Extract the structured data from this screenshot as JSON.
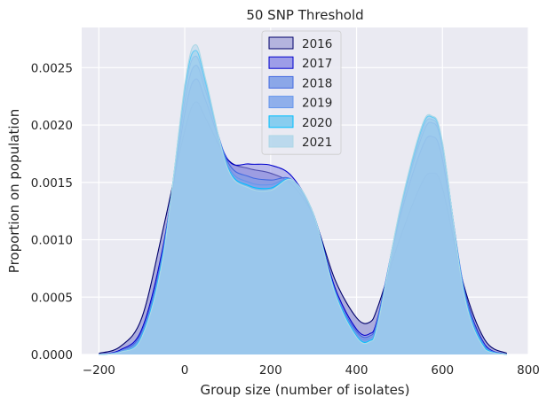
{
  "chart_data": {
    "type": "area",
    "title": "50 SNP Threshold",
    "xlabel": "Group size (number of isolates)",
    "ylabel": "Proportion on population",
    "xlim": [
      -240,
      800
    ],
    "ylim": [
      0,
      0.00285
    ],
    "xticks": [
      -200,
      0,
      200,
      400,
      600,
      800
    ],
    "xtick_labels": [
      "−200",
      "0",
      "200",
      "400",
      "600",
      "800"
    ],
    "yticks": [
      0,
      0.0005,
      0.001,
      0.0015,
      0.002,
      0.0025
    ],
    "ytick_labels": [
      "0.0000",
      "0.0005",
      "0.0010",
      "0.0015",
      "0.0020",
      "0.0025"
    ],
    "grid": true,
    "legend_position": "top-center",
    "x": [
      -200,
      -150,
      -100,
      -50,
      0,
      25,
      50,
      100,
      150,
      200,
      250,
      300,
      350,
      400,
      430,
      450,
      500,
      550,
      575,
      600,
      650,
      700,
      750
    ],
    "series": [
      {
        "name": "2016",
        "fill": "#aaaadb",
        "stroke": "#00006b",
        "values": [
          1e-05,
          7e-05,
          0.00032,
          0.0011,
          0.00195,
          0.0022,
          0.00205,
          0.0017,
          0.00162,
          0.00158,
          0.00148,
          0.0012,
          0.00065,
          0.00032,
          0.00028,
          0.00042,
          0.001,
          0.00148,
          0.00158,
          0.00145,
          0.0006,
          0.00012,
          1e-05
        ]
      },
      {
        "name": "2017",
        "fill": "#8f8fe6",
        "stroke": "#0000cd",
        "values": [
          0.0,
          4e-05,
          0.00022,
          0.00095,
          0.0021,
          0.0024,
          0.0022,
          0.0017,
          0.00166,
          0.00165,
          0.00155,
          0.00122,
          0.00058,
          0.00022,
          0.00018,
          0.00033,
          0.00118,
          0.00178,
          0.0019,
          0.0017,
          0.00058,
          8e-05,
          0.0
        ]
      },
      {
        "name": "2018",
        "fill": "#7a9be6",
        "stroke": "#4169e1",
        "values": [
          0.0,
          3e-05,
          0.0002,
          0.00092,
          0.0022,
          0.00252,
          0.00228,
          0.00168,
          0.00155,
          0.00152,
          0.00152,
          0.0012,
          0.00055,
          0.0002,
          0.00016,
          0.00032,
          0.00122,
          0.00188,
          0.00202,
          0.0018,
          0.00058,
          7e-05,
          0.0
        ]
      },
      {
        "name": "2019",
        "fill": "#7fa5ea",
        "stroke": "#6495ed",
        "values": [
          0.0,
          3e-05,
          0.00018,
          0.0009,
          0.00228,
          0.0026,
          0.00232,
          0.00165,
          0.0015,
          0.00148,
          0.00152,
          0.00122,
          0.00055,
          0.00018,
          0.00014,
          0.0003,
          0.00122,
          0.00192,
          0.00205,
          0.00182,
          0.00056,
          6e-05,
          0.0
        ]
      },
      {
        "name": "2020",
        "fill": "#77c8ee",
        "stroke": "#00bfff",
        "values": [
          0.0,
          2e-05,
          0.00016,
          0.00088,
          0.00232,
          0.00265,
          0.00235,
          0.00163,
          0.00147,
          0.00145,
          0.00152,
          0.00122,
          0.00054,
          0.00016,
          0.00012,
          0.00028,
          0.00124,
          0.00195,
          0.00207,
          0.00184,
          0.00054,
          5e-05,
          0.0
        ]
      },
      {
        "name": "2021",
        "fill": "#b3d6ec",
        "stroke": "#add8e6",
        "values": [
          0.0,
          2e-05,
          0.00015,
          0.00086,
          0.00235,
          0.0027,
          0.00238,
          0.00162,
          0.00145,
          0.00143,
          0.00152,
          0.00122,
          0.00053,
          0.00015,
          0.00011,
          0.00027,
          0.00125,
          0.00197,
          0.00208,
          0.00185,
          0.00053,
          4e-05,
          0.0
        ]
      }
    ],
    "colors": {
      "plot_background": "#eaeaf2",
      "grid": "#ffffff",
      "text": "#262626",
      "legend_background": "#eaeaf2",
      "legend_border": "#cccccc",
      "mixed_area": "#6ca4e4"
    }
  }
}
